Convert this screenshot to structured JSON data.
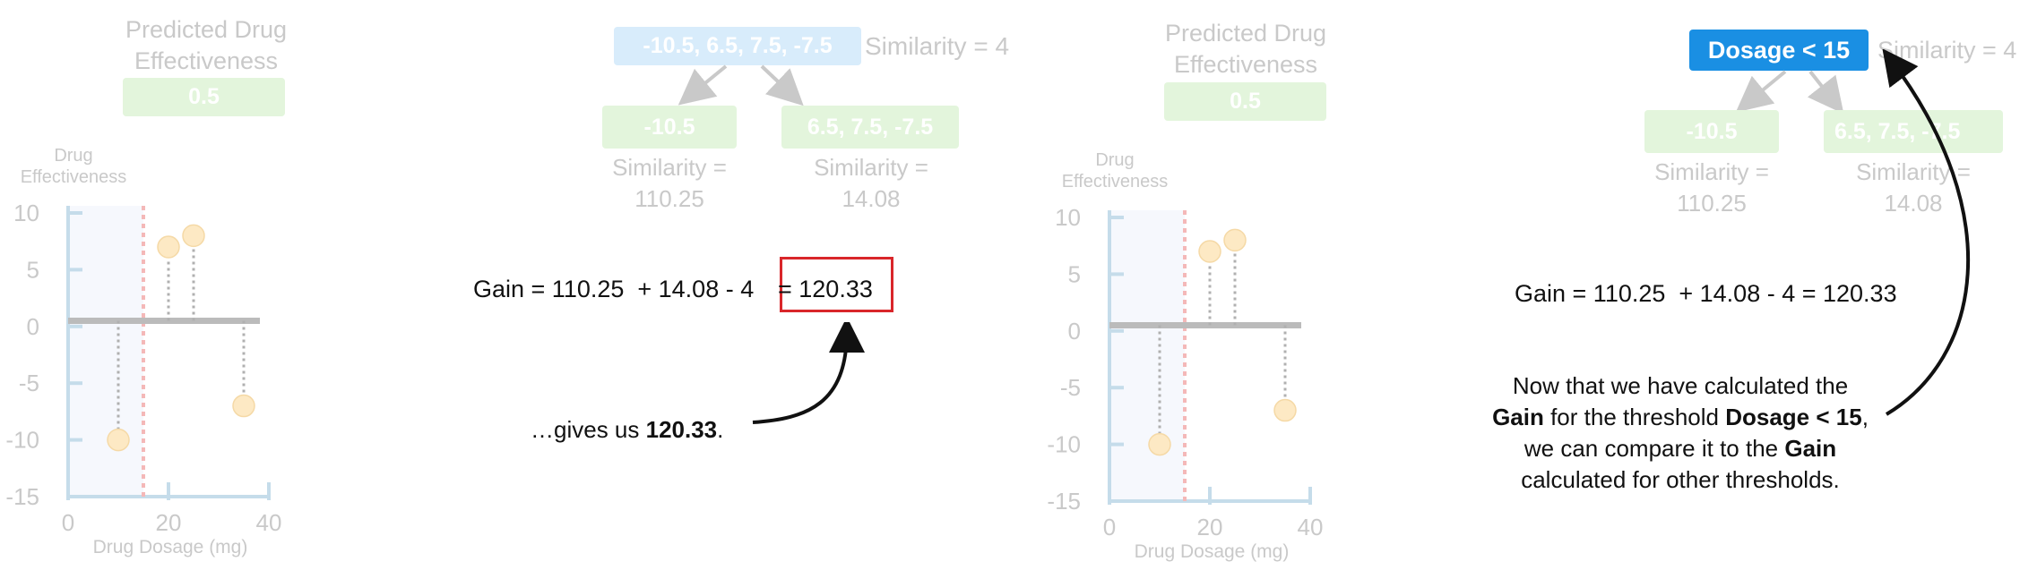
{
  "panel1": {
    "title_line1": "Predicted Drug",
    "title_line2": "Effectiveness",
    "prediction": "0.5",
    "ylabel_line1": "Drug",
    "ylabel_line2": "Effectiveness",
    "xlabel": "Drug Dosage (mg)",
    "y_ticks": [
      "10",
      "5",
      "0",
      "-5",
      "-10",
      "-15"
    ],
    "x_ticks": [
      "0",
      "20",
      "40"
    ]
  },
  "panel2": {
    "root_residuals": "-10.5, 6.5, 7.5, -7.5",
    "root_similarity": "Similarity = 4",
    "left_leaf": "-10.5",
    "right_leaf": "6.5, 7.5, -7.5",
    "left_sim_line1": "Similarity =",
    "left_sim_line2": "110.25",
    "right_sim_line1": "Similarity =",
    "right_sim_line2": "14.08",
    "gain_text": "Gain = 110.25  + 14.08 - 4",
    "gain_result": "= 120.33",
    "callout_prefix": "…gives us ",
    "callout_value": "120.33",
    "callout_suffix": "."
  },
  "panel3": {
    "title_line1": "Predicted Drug",
    "title_line2": "Effectiveness",
    "prediction": "0.5",
    "ylabel_line1": "Drug",
    "ylabel_line2": "Effectiveness",
    "xlabel": "Drug Dosage (mg)",
    "y_ticks": [
      "10",
      "5",
      "0",
      "-5",
      "-10",
      "-15"
    ],
    "x_ticks": [
      "0",
      "20",
      "40"
    ]
  },
  "panel4": {
    "root_label": "Dosage < 15",
    "root_similarity": "Similarity = 4",
    "left_leaf": "-10.5",
    "right_leaf": "6.5, 7.5, -7.5",
    "left_sim_line1": "Similarity =",
    "left_sim_line2": "110.25",
    "right_sim_line1": "Similarity =",
    "right_sim_line2": "14.08",
    "gain_text": "Gain = 110.25  + 14.08 - 4 = 120.33",
    "msg_line1": "Now that we have calculated the",
    "msg_line2_b1": "Gain",
    "msg_line2_t1": " for the threshold ",
    "msg_line2_b2": "Dosage < 15",
    "msg_line2_t2": ",",
    "msg_line3_t1": "we can compare it to the ",
    "msg_line3_b1": "Gain",
    "msg_line4": "calculated for other thresholds."
  },
  "chart_data": [
    {
      "type": "scatter",
      "xlabel": "Drug Dosage (mg)",
      "ylabel": "Drug Effectiveness",
      "xlim": [
        0,
        40
      ],
      "ylim": [
        -15,
        10
      ],
      "prediction_line": 0.5,
      "threshold": 15,
      "x": [
        10,
        20,
        25,
        35
      ],
      "values": [
        -10,
        7,
        8,
        -7
      ]
    },
    {
      "type": "scatter",
      "xlabel": "Drug Dosage (mg)",
      "ylabel": "Drug Effectiveness",
      "xlim": [
        0,
        40
      ],
      "ylim": [
        -15,
        10
      ],
      "prediction_line": 0.5,
      "threshold": 15,
      "x": [
        10,
        20,
        25,
        35
      ],
      "values": [
        -10,
        7,
        8,
        -7
      ]
    }
  ],
  "colors": {
    "faded_green": "#e3f5dc",
    "faded_blue": "#d8ecfb",
    "blue": "#1a8fe3",
    "highlight_red": "#d9262a",
    "point_fill": "#fde9c4",
    "threshold_red": "#f4b8b8",
    "axis_blue": "#c5dcea"
  }
}
